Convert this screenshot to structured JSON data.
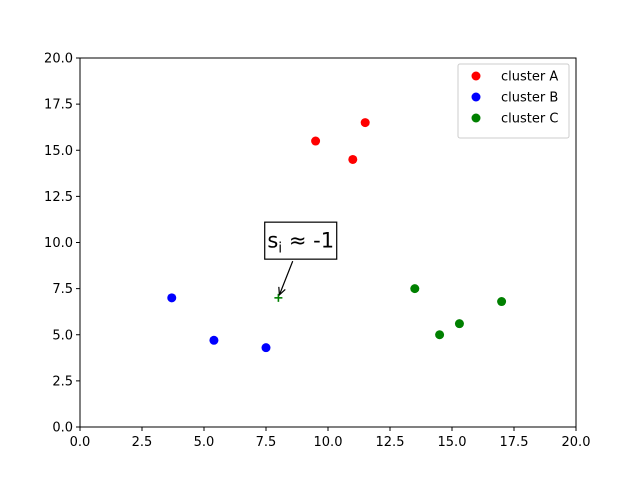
{
  "chart_data": {
    "type": "scatter",
    "title": "",
    "xlabel": "",
    "ylabel": "",
    "xlim": [
      0,
      20
    ],
    "ylim": [
      0,
      20
    ],
    "x_ticks": [
      "0.0",
      "2.5",
      "5.0",
      "7.5",
      "10.0",
      "12.5",
      "15.0",
      "17.5",
      "20.0"
    ],
    "y_ticks": [
      "0.0",
      "2.5",
      "5.0",
      "7.5",
      "10.0",
      "12.5",
      "15.0",
      "17.5",
      "20.0"
    ],
    "grid": false,
    "legend_position": "top-right",
    "series": [
      {
        "name": "cluster A",
        "color": "#ff0000",
        "x": [
          9.5,
          11.0,
          11.5
        ],
        "y": [
          15.5,
          14.5,
          16.5
        ]
      },
      {
        "name": "cluster B",
        "color": "#0000ff",
        "x": [
          3.7,
          5.4,
          7.5
        ],
        "y": [
          7.0,
          4.7,
          4.3
        ]
      },
      {
        "name": "cluster C",
        "color": "#008000",
        "x": [
          13.5,
          14.5,
          15.3,
          17.0
        ],
        "y": [
          7.5,
          5.0,
          5.6,
          6.8
        ]
      }
    ],
    "highlight_point": {
      "x": 8.0,
      "y": 7.0,
      "marker": "plus",
      "color": "#008000"
    },
    "annotation": {
      "text_main": "s",
      "text_subscript": "i",
      "text_rest": " ≈ -1",
      "text_x": 8.9,
      "text_y": 10.1
    }
  }
}
